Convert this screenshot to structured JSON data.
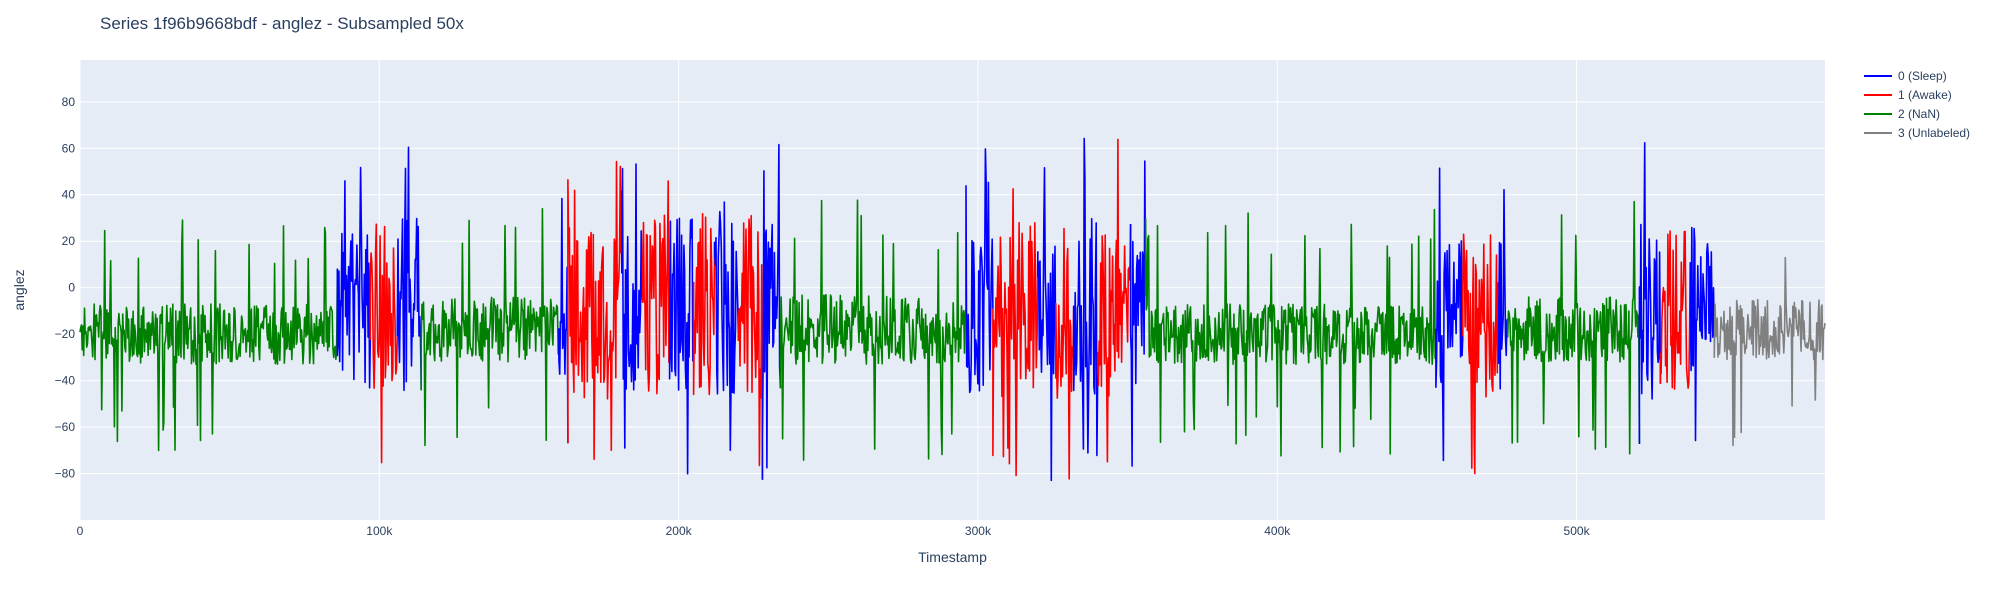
{
  "chart_data": {
    "type": "line",
    "title": "Series 1f96b9668bdf - anglez - Subsampled 50x",
    "xlabel": "Timestamp",
    "ylabel": "anglez",
    "xlim": [
      0,
      583000
    ],
    "ylim": [
      -100,
      98
    ],
    "x_ticks": [
      {
        "value": 0,
        "label": "0"
      },
      {
        "value": 100000,
        "label": "100k"
      },
      {
        "value": 200000,
        "label": "200k"
      },
      {
        "value": 300000,
        "label": "300k"
      },
      {
        "value": 400000,
        "label": "400k"
      },
      {
        "value": 500000,
        "label": "500k"
      }
    ],
    "y_ticks": [
      {
        "value": 80,
        "label": "80"
      },
      {
        "value": 60,
        "label": "60"
      },
      {
        "value": 40,
        "label": "40"
      },
      {
        "value": 20,
        "label": "20"
      },
      {
        "value": 0,
        "label": "0"
      },
      {
        "value": -20,
        "label": "−20"
      },
      {
        "value": -40,
        "label": "−40"
      },
      {
        "value": -60,
        "label": "−60"
      },
      {
        "value": -80,
        "label": "−80"
      }
    ],
    "grid": true,
    "legend_position": "top-right",
    "series": [
      {
        "name": "0 (Sleep)",
        "color": "#0000ff"
      },
      {
        "name": "1 (Awake)",
        "color": "#ff0000"
      },
      {
        "name": "2 (NaN)",
        "color": "#008000"
      },
      {
        "name": "3 (Unlabeled)",
        "color": "#808080"
      }
    ],
    "segments": [
      {
        "series": 2,
        "x_start": 0,
        "x_end": 86000,
        "baseline": -20,
        "noise": 13,
        "spike": 28
      },
      {
        "series": 0,
        "x_start": 86000,
        "x_end": 97000,
        "baseline": -10,
        "noise": 34,
        "spike": 50
      },
      {
        "series": 1,
        "x_start": 97000,
        "x_end": 106000,
        "baseline": -8,
        "noise": 36,
        "spike": 50
      },
      {
        "series": 0,
        "x_start": 106000,
        "x_end": 114000,
        "baseline": -8,
        "noise": 38,
        "spike": 52
      },
      {
        "series": 2,
        "x_start": 114000,
        "x_end": 160000,
        "baseline": -18,
        "noise": 14,
        "spike": 30
      },
      {
        "series": 0,
        "x_start": 160000,
        "x_end": 163000,
        "baseline": -15,
        "noise": 30,
        "spike": 45
      },
      {
        "series": 1,
        "x_start": 163000,
        "x_end": 181000,
        "baseline": -10,
        "noise": 38,
        "spike": 50
      },
      {
        "series": 0,
        "x_start": 181000,
        "x_end": 188000,
        "baseline": -10,
        "noise": 36,
        "spike": 50
      },
      {
        "series": 1,
        "x_start": 188000,
        "x_end": 197000,
        "baseline": -8,
        "noise": 40,
        "spike": 50
      },
      {
        "series": 0,
        "x_start": 197000,
        "x_end": 205000,
        "baseline": -8,
        "noise": 38,
        "spike": 52
      },
      {
        "series": 1,
        "x_start": 205000,
        "x_end": 212000,
        "baseline": -8,
        "noise": 40,
        "spike": 50
      },
      {
        "series": 0,
        "x_start": 212000,
        "x_end": 220000,
        "baseline": -5,
        "noise": 42,
        "spike": 55
      },
      {
        "series": 1,
        "x_start": 220000,
        "x_end": 228000,
        "baseline": -8,
        "noise": 40,
        "spike": 50
      },
      {
        "series": 0,
        "x_start": 228000,
        "x_end": 234000,
        "baseline": -8,
        "noise": 42,
        "spike": 55
      },
      {
        "series": 2,
        "x_start": 234000,
        "x_end": 296000,
        "baseline": -18,
        "noise": 15,
        "spike": 32
      },
      {
        "series": 0,
        "x_start": 296000,
        "x_end": 305000,
        "baseline": -12,
        "noise": 34,
        "spike": 50
      },
      {
        "series": 1,
        "x_start": 305000,
        "x_end": 320000,
        "baseline": -10,
        "noise": 38,
        "spike": 50
      },
      {
        "series": 0,
        "x_start": 320000,
        "x_end": 326000,
        "baseline": -10,
        "noise": 36,
        "spike": 50
      },
      {
        "series": 1,
        "x_start": 326000,
        "x_end": 332000,
        "baseline": -10,
        "noise": 38,
        "spike": 50
      },
      {
        "series": 0,
        "x_start": 332000,
        "x_end": 340000,
        "baseline": -8,
        "noise": 40,
        "spike": 52
      },
      {
        "series": 1,
        "x_start": 340000,
        "x_end": 351000,
        "baseline": -10,
        "noise": 38,
        "spike": 50
      },
      {
        "series": 0,
        "x_start": 351000,
        "x_end": 356000,
        "baseline": -10,
        "noise": 36,
        "spike": 50
      },
      {
        "series": 2,
        "x_start": 356000,
        "x_end": 453000,
        "baseline": -20,
        "noise": 13,
        "spike": 30
      },
      {
        "series": 0,
        "x_start": 453000,
        "x_end": 462000,
        "baseline": -12,
        "noise": 34,
        "spike": 50
      },
      {
        "series": 1,
        "x_start": 462000,
        "x_end": 474000,
        "baseline": -12,
        "noise": 36,
        "spike": 50
      },
      {
        "series": 0,
        "x_start": 474000,
        "x_end": 477000,
        "baseline": -10,
        "noise": 34,
        "spike": 48
      },
      {
        "series": 2,
        "x_start": 477000,
        "x_end": 521000,
        "baseline": -18,
        "noise": 14,
        "spike": 32
      },
      {
        "series": 0,
        "x_start": 521000,
        "x_end": 528000,
        "baseline": -10,
        "noise": 38,
        "spike": 52
      },
      {
        "series": 1,
        "x_start": 528000,
        "x_end": 538000,
        "baseline": -10,
        "noise": 36,
        "spike": 50
      },
      {
        "series": 0,
        "x_start": 538000,
        "x_end": 546000,
        "baseline": -10,
        "noise": 36,
        "spike": 50
      },
      {
        "series": 3,
        "x_start": 546000,
        "x_end": 583000,
        "baseline": -18,
        "noise": 13,
        "spike": 30
      }
    ]
  }
}
